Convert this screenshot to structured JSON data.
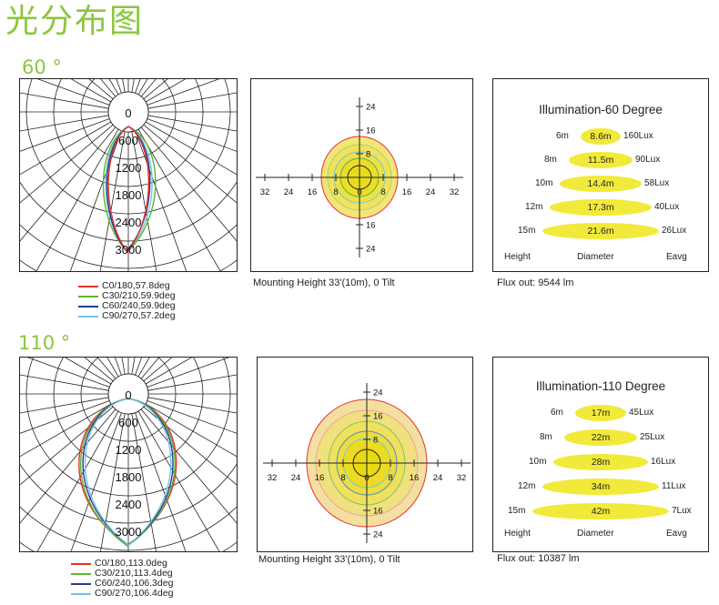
{
  "page_title": "光分布图",
  "sections": [
    {
      "label": "60 °",
      "polar": {
        "labels": [
          "0",
          "600",
          "1200",
          "1800",
          "2400",
          "3000"
        ],
        "legend": [
          {
            "text": "C0/180,57.8deg",
            "color": "#e8312a"
          },
          {
            "text": "C30/210,59.9deg",
            "color": "#5cb531"
          },
          {
            "text": "C60/240,59.9deg",
            "color": "#2b3a8f"
          },
          {
            "text": "C90/270,57.2deg",
            "color": "#6fc6e6"
          }
        ]
      },
      "isolux": {
        "x_ticks": [
          "32",
          "24",
          "16",
          "8",
          "0",
          "8",
          "16",
          "24",
          "32"
        ],
        "y_ticks_up": [
          "24",
          "16",
          "8"
        ],
        "y_ticks_down": [
          "16",
          "24"
        ],
        "caption": "Mounting Height 33'(10m), 0 Tilt"
      },
      "illumination": {
        "title": "Illumination-60 Degree",
        "rows": [
          {
            "height": "6m",
            "diameter": "8.6m",
            "lux": "160Lux"
          },
          {
            "height": "8m",
            "diameter": "11.5m",
            "lux": "90Lux"
          },
          {
            "height": "10m",
            "diameter": "14.4m",
            "lux": "58Lux"
          },
          {
            "height": "12m",
            "diameter": "17.3m",
            "lux": "40Lux"
          },
          {
            "height": "15m",
            "diameter": "21.6m",
            "lux": "26Lux"
          }
        ],
        "col_height": "Height",
        "col_diameter": "Diameter",
        "col_eavg": "Eavg",
        "flux": "Flux out: 9544 lm"
      }
    },
    {
      "label": "110 °",
      "polar": {
        "labels": [
          "0",
          "600",
          "1200",
          "1800",
          "2400",
          "3000"
        ],
        "legend": [
          {
            "text": "C0/180,113.0deg",
            "color": "#e8312a"
          },
          {
            "text": "C30/210,113.4deg",
            "color": "#5cb531"
          },
          {
            "text": "C60/240,106.3deg",
            "color": "#2b3a8f"
          },
          {
            "text": "C90/270,106.4deg",
            "color": "#6fc6e6"
          }
        ]
      },
      "isolux": {
        "x_ticks": [
          "32",
          "24",
          "16",
          "8",
          "0",
          "8",
          "16",
          "24",
          "32"
        ],
        "y_ticks_up": [
          "24",
          "16",
          "8"
        ],
        "y_ticks_down": [
          "16",
          "24"
        ],
        "caption": "Mounting Height 33'(10m), 0 Tilt"
      },
      "illumination": {
        "title": "Illumination-110 Degree",
        "rows": [
          {
            "height": "6m",
            "diameter": "17m",
            "lux": "45Lux"
          },
          {
            "height": "8m",
            "diameter": "22m",
            "lux": "25Lux"
          },
          {
            "height": "10m",
            "diameter": "28m",
            "lux": "16Lux"
          },
          {
            "height": "12m",
            "diameter": "34m",
            "lux": "11Lux"
          },
          {
            "height": "15m",
            "diameter": "42m",
            "lux": "7Lux"
          }
        ],
        "col_height": "Height",
        "col_diameter": "Diameter",
        "col_eavg": "Eavg",
        "flux": "Flux out: 10387 lm"
      }
    }
  ]
}
